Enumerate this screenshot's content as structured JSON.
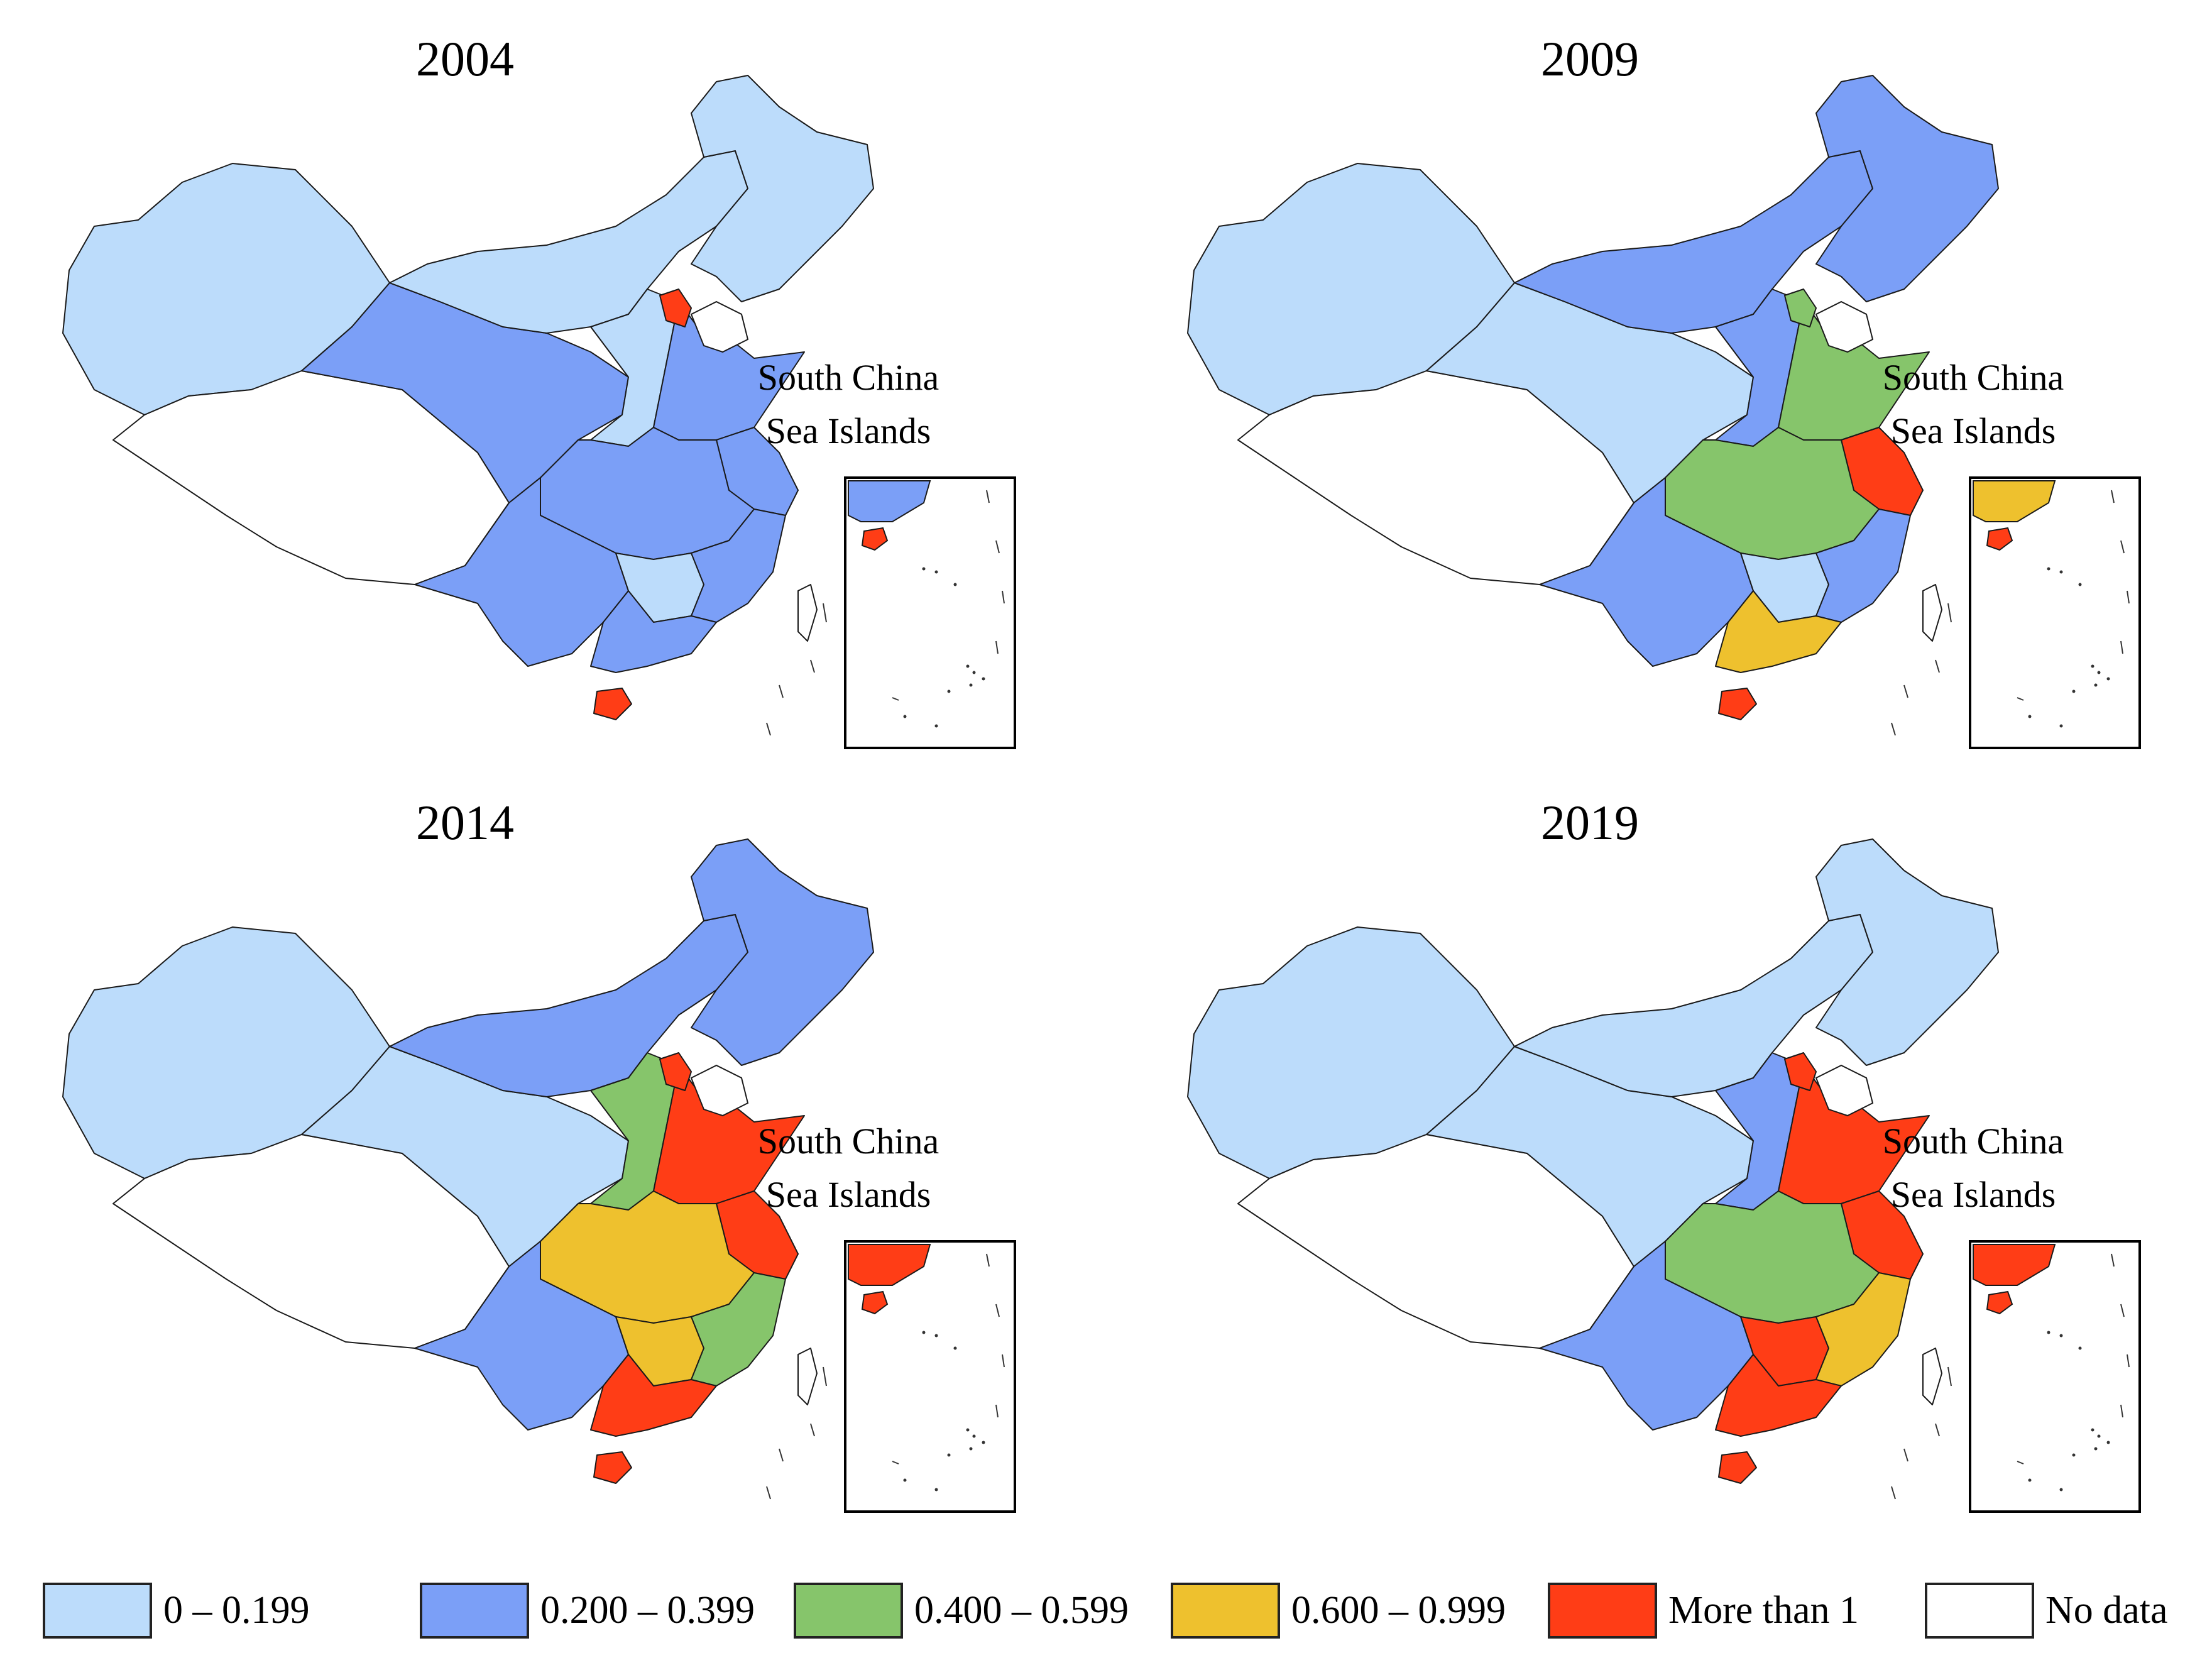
{
  "figure": {
    "panels": [
      {
        "year": "2004",
        "inset_label_1": "South China",
        "inset_label_2": "Sea Islands"
      },
      {
        "year": "2009",
        "inset_label_1": "South China",
        "inset_label_2": "Sea Islands"
      },
      {
        "year": "2014",
        "inset_label_1": "South China",
        "inset_label_2": "Sea Islands"
      },
      {
        "year": "2019",
        "inset_label_1": "South China",
        "inset_label_2": "Sea Islands"
      }
    ],
    "legend": [
      {
        "label": "0 – 0.199",
        "color": "#bcdcfb"
      },
      {
        "label": "0.200 – 0.399",
        "color": "#7b9ff7"
      },
      {
        "label": "0.400 – 0.599",
        "color": "#86c56b"
      },
      {
        "label": "0.600 – 0.999",
        "color": "#eec12e"
      },
      {
        "label": "More than 1",
        "color": "#ff3d16"
      },
      {
        "label": "No data",
        "color": "#ffffff"
      }
    ],
    "regions": [
      {
        "name": "northeast",
        "values": [
          0.1,
          0.3,
          0.3,
          0.1
        ]
      },
      {
        "name": "inner-mongolia",
        "values": [
          0.1,
          0.3,
          0.3,
          0.1
        ]
      },
      {
        "name": "xinjiang",
        "values": [
          0.1,
          0.1,
          0.1,
          0.1
        ]
      },
      {
        "name": "tibet",
        "values": [
          null,
          null,
          null,
          null
        ]
      },
      {
        "name": "qinghai-gansu",
        "values": [
          0.3,
          0.1,
          0.1,
          0.1
        ]
      },
      {
        "name": "north-central",
        "values": [
          0.1,
          0.3,
          0.5,
          0.3
        ]
      },
      {
        "name": "north-china-plain",
        "values": [
          0.3,
          0.5,
          1.2,
          1.2
        ]
      },
      {
        "name": "beijing-tianjin",
        "values": [
          1.2,
          0.5,
          1.2,
          1.2
        ]
      },
      {
        "name": "yangtze-delta",
        "values": [
          0.3,
          1.2,
          1.2,
          1.2
        ]
      },
      {
        "name": "central",
        "values": [
          0.3,
          0.5,
          0.7,
          0.5
        ]
      },
      {
        "name": "southwest",
        "values": [
          0.3,
          0.3,
          0.3,
          0.3
        ]
      },
      {
        "name": "south-central",
        "values": [
          0.1,
          0.1,
          0.7,
          1.2
        ]
      },
      {
        "name": "southeast-coast",
        "values": [
          0.3,
          0.3,
          0.5,
          0.7
        ]
      },
      {
        "name": "guangdong",
        "values": [
          0.3,
          0.7,
          1.2,
          1.2
        ]
      },
      {
        "name": "hainan",
        "values": [
          1.2,
          1.2,
          1.2,
          1.2
        ]
      },
      {
        "name": "taiwan",
        "values": [
          null,
          null,
          null,
          null
        ]
      }
    ]
  }
}
